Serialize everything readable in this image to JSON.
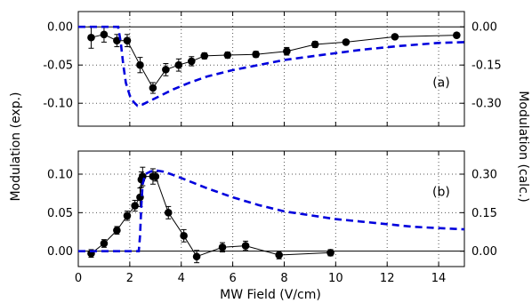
{
  "figure": {
    "xlabel": "MW Field (V/cm)",
    "ylabel_left": "Modulation (exp.)",
    "ylabel_right": "Modulation (calc.)"
  },
  "colors": {
    "experiment": "#000000",
    "calculation": "#0000dd",
    "grid": "#555555"
  },
  "chart_data": [
    {
      "type": "line",
      "panel_label": "(a)",
      "xlim": [
        0,
        15
      ],
      "ylim": [
        -0.13,
        0.02
      ],
      "ylim_right": [
        -0.39,
        0.06
      ],
      "xticks": [
        "0",
        "2",
        "4",
        "6",
        "8",
        "10",
        "12",
        "14"
      ],
      "yticks_left": [
        "0.00",
        "-0.05",
        "-0.10"
      ],
      "yticks_right": [
        "0.00",
        "-0.15",
        "-0.30"
      ],
      "yticks_left_values": [
        0.0,
        -0.05,
        -0.1
      ],
      "yticks_right_values": [
        0.0,
        -0.15,
        -0.3
      ],
      "grid": true,
      "series": [
        {
          "style": "markers-with-errorbars",
          "x": [
            0.5,
            1.0,
            1.5,
            1.9,
            2.4,
            2.9,
            3.4,
            3.9,
            4.4,
            4.9,
            5.8,
            6.9,
            8.1,
            9.2,
            10.4,
            12.3,
            14.7
          ],
          "y": [
            -0.014,
            -0.01,
            -0.018,
            -0.018,
            -0.05,
            -0.08,
            -0.056,
            -0.05,
            -0.045,
            -0.038,
            -0.037,
            -0.036,
            -0.032,
            -0.023,
            -0.02,
            -0.013,
            -0.011
          ],
          "yerr": [
            0.014,
            0.01,
            0.008,
            0.008,
            0.01,
            0.007,
            0.008,
            0.008,
            0.006,
            0.004,
            0.004,
            0.004,
            0.005,
            0.004,
            0.003,
            0.003,
            0.003
          ]
        },
        {
          "style": "dashed",
          "axis": "right",
          "x": [
            0,
            1.55,
            1.65,
            1.75,
            1.85,
            2.0,
            2.15,
            2.3,
            2.5,
            2.8,
            3.2,
            3.7,
            4.3,
            5.0,
            6.0,
            7.0,
            8.0,
            9.5,
            11.0,
            12.5,
            14.0,
            15.0
          ],
          "y": [
            0,
            0,
            -0.06,
            -0.15,
            -0.22,
            -0.27,
            -0.295,
            -0.31,
            -0.305,
            -0.29,
            -0.27,
            -0.245,
            -0.22,
            -0.195,
            -0.17,
            -0.15,
            -0.13,
            -0.11,
            -0.09,
            -0.075,
            -0.063,
            -0.06
          ]
        }
      ]
    },
    {
      "type": "line",
      "panel_label": "(b)",
      "xlim": [
        0,
        15
      ],
      "ylim": [
        -0.02,
        0.13
      ],
      "ylim_right": [
        -0.06,
        0.39
      ],
      "xticks": [
        "0",
        "2",
        "4",
        "6",
        "8",
        "10",
        "12",
        "14"
      ],
      "yticks_left": [
        "0.00",
        "0.05",
        "0.10"
      ],
      "yticks_right": [
        "0.00",
        "0.15",
        "0.30"
      ],
      "yticks_left_values": [
        0.0,
        0.05,
        0.1
      ],
      "yticks_right_values": [
        0.0,
        0.15,
        0.3
      ],
      "grid": true,
      "series": [
        {
          "style": "markers-with-errorbars",
          "x": [
            0.5,
            1.0,
            1.5,
            1.9,
            2.2,
            2.4,
            2.45,
            2.5,
            2.9,
            3.0,
            3.5,
            4.1,
            4.6,
            5.6,
            6.5,
            7.8,
            9.8
          ],
          "y": [
            -0.003,
            0.01,
            0.027,
            0.046,
            0.059,
            0.07,
            0.093,
            0.097,
            0.097,
            0.097,
            0.05,
            0.02,
            -0.007,
            0.005,
            0.007,
            -0.005,
            -0.002
          ],
          "yerr": [
            0.005,
            0.005,
            0.005,
            0.006,
            0.007,
            0.012,
            0.01,
            0.012,
            0.01,
            0.006,
            0.008,
            0.008,
            0.008,
            0.006,
            0.006,
            0.005,
            0.004
          ]
        },
        {
          "style": "dashed",
          "axis": "right",
          "x": [
            0,
            2.35,
            2.4,
            2.45,
            2.5,
            2.6,
            2.8,
            3.0,
            3.3,
            3.6,
            4.0,
            4.5,
            5.0,
            6.0,
            7.0,
            8.0,
            9.0,
            10.0,
            11.0,
            12.0,
            13.0,
            14.0,
            15.0
          ],
          "y": [
            0,
            0,
            0.06,
            0.18,
            0.26,
            0.3,
            0.31,
            0.315,
            0.31,
            0.3,
            0.285,
            0.265,
            0.245,
            0.21,
            0.18,
            0.155,
            0.14,
            0.125,
            0.115,
            0.105,
            0.095,
            0.09,
            0.085
          ]
        }
      ]
    }
  ]
}
